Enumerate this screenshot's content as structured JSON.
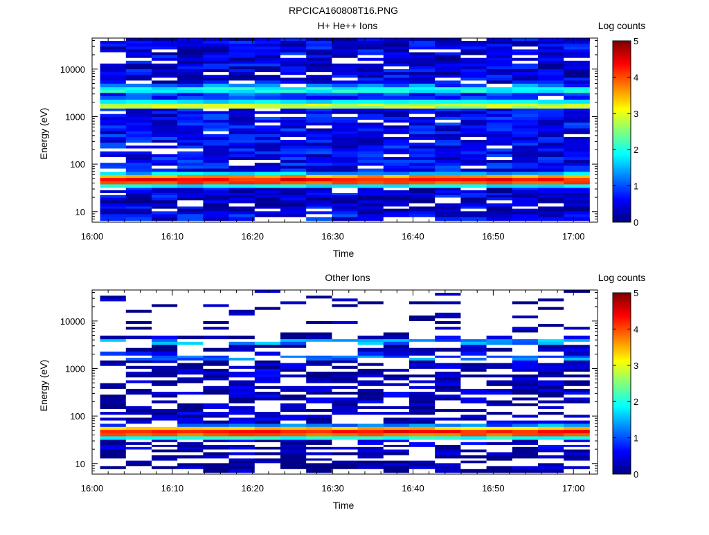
{
  "figure_title": "RPCICA160808T16.PNG",
  "colors": {
    "colormap": [
      "#00007f",
      "#0000ff",
      "#007fff",
      "#00ffff",
      "#7fff7f",
      "#ffff00",
      "#ff7f00",
      "#ff0000",
      "#7f0000"
    ],
    "empty": "#ffffff",
    "axis": "#000000"
  },
  "chart_data": [
    {
      "type": "heatmap",
      "title": "H+ He++ Ions",
      "xlabel": "Time",
      "ylabel": "Energy (eV)",
      "xticks": [
        "16:00",
        "16:10",
        "16:20",
        "16:30",
        "16:40",
        "16:50",
        "17:00"
      ],
      "yticks": [
        "10",
        "100",
        "1000",
        "10000"
      ],
      "y_scale": "log",
      "ylim": [
        6,
        45000
      ],
      "xlim": [
        "16:00",
        "17:03"
      ],
      "data_x_range": [
        "16:01",
        "17:02"
      ],
      "colorbar": {
        "label": "Log counts",
        "ticks": [
          "0",
          "1",
          "2",
          "3",
          "4",
          "5"
        ],
        "range": [
          0,
          5
        ]
      },
      "bands": [
        {
          "energy_range": [
            6.5,
            9
          ],
          "level": 0.6
        },
        {
          "energy_range": [
            9,
            13
          ],
          "level": 0.45
        },
        {
          "energy_range": [
            13,
            20
          ],
          "level": 0.35
        },
        {
          "energy_range": [
            20,
            25
          ],
          "level": 0.55
        },
        {
          "energy_range": [
            25,
            32
          ],
          "level": 0.4
        },
        {
          "energy_range": [
            32,
            38
          ],
          "level": 1.8
        },
        {
          "energy_range": [
            38,
            44
          ],
          "level": 4.0
        },
        {
          "energy_range": [
            44,
            52
          ],
          "level": 4.3
        },
        {
          "energy_range": [
            52,
            60
          ],
          "level": 3.6
        },
        {
          "energy_range": [
            60,
            70
          ],
          "level": 1.5
        },
        {
          "energy_range": [
            70,
            1500
          ],
          "level": 0.6
        },
        {
          "energy_range": [
            1500,
            1900
          ],
          "level": 2.8
        },
        {
          "energy_range": [
            1900,
            2300
          ],
          "level": 1.8
        },
        {
          "energy_range": [
            2300,
            3200
          ],
          "level": 0.9
        },
        {
          "energy_range": [
            3200,
            4200
          ],
          "level": 1.9
        },
        {
          "energy_range": [
            4200,
            5000
          ],
          "level": 1.1
        },
        {
          "energy_range": [
            5000,
            45000
          ],
          "level": 0.5
        }
      ]
    },
    {
      "type": "heatmap",
      "title": "Other Ions",
      "xlabel": "Time",
      "ylabel": "Energy (eV)",
      "xticks": [
        "16:00",
        "16:10",
        "16:20",
        "16:30",
        "16:40",
        "16:50",
        "17:00"
      ],
      "yticks": [
        "10",
        "100",
        "1000",
        "10000"
      ],
      "y_scale": "log",
      "ylim": [
        6,
        45000
      ],
      "xlim": [
        "16:00",
        "17:03"
      ],
      "data_x_range": [
        "16:01",
        "17:02"
      ],
      "colorbar": {
        "label": "Log counts",
        "ticks": [
          "0",
          "1",
          "2",
          "3",
          "4",
          "5"
        ],
        "range": [
          0,
          5
        ]
      },
      "bands": [
        {
          "energy_range": [
            6.5,
            9
          ],
          "level": 0.1
        },
        {
          "energy_range": [
            9,
            13
          ],
          "level": 0.1
        },
        {
          "energy_range": [
            13,
            20
          ],
          "level": 0.1
        },
        {
          "energy_range": [
            20,
            25
          ],
          "level": 0.3
        },
        {
          "energy_range": [
            25,
            32
          ],
          "level": 0.3
        },
        {
          "energy_range": [
            32,
            38
          ],
          "level": 2.0
        },
        {
          "energy_range": [
            38,
            44
          ],
          "level": 3.9
        },
        {
          "energy_range": [
            44,
            52
          ],
          "level": 4.3
        },
        {
          "energy_range": [
            52,
            60
          ],
          "level": 3.4
        },
        {
          "energy_range": [
            60,
            70
          ],
          "level": 1.2
        },
        {
          "energy_range": [
            70,
            1500
          ],
          "level": 0.25
        },
        {
          "energy_range": [
            1500,
            1900
          ],
          "level": 1.2
        },
        {
          "energy_range": [
            1900,
            2300
          ],
          "level": 0.6
        },
        {
          "energy_range": [
            2300,
            3200
          ],
          "level": 0.1
        },
        {
          "energy_range": [
            3200,
            4200
          ],
          "level": 1.3
        },
        {
          "energy_range": [
            4200,
            5000
          ],
          "level": 0.4
        },
        {
          "energy_range": [
            5000,
            45000
          ],
          "level": 0.1
        }
      ]
    }
  ]
}
